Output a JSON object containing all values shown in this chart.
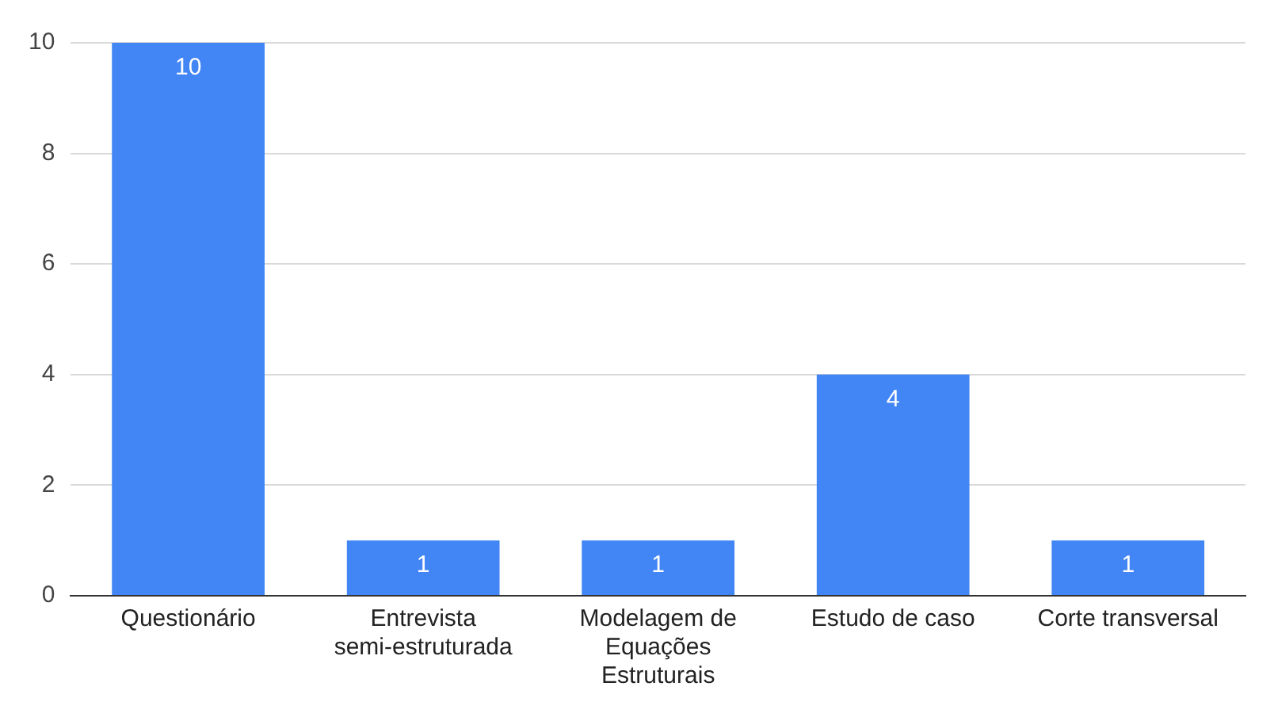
{
  "chart_data": {
    "type": "bar",
    "categories": [
      "Questionário",
      "Entrevista semi-estruturada",
      "Modelagem de Equações Estruturais",
      "Estudo de caso",
      "Corte transversal"
    ],
    "values": [
      10,
      1,
      1,
      4,
      1
    ],
    "color": "#4285f4",
    "ylim": [
      0,
      10
    ],
    "yticks": [
      0,
      2,
      4,
      6,
      8,
      10
    ],
    "grid": "y",
    "data_labels": true,
    "legend": false
  }
}
